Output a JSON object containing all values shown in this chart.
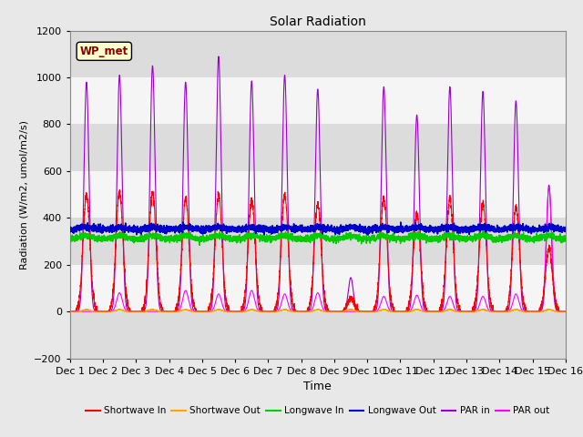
{
  "title": "Solar Radiation",
  "xlabel": "Time",
  "ylabel": "Radiation (W/m2, umol/m2/s)",
  "ylim": [
    -200,
    1200
  ],
  "xlim": [
    0,
    15
  ],
  "yticks": [
    -200,
    0,
    200,
    400,
    600,
    800,
    1000,
    1200
  ],
  "xtick_labels": [
    "Dec 1",
    "Dec 2",
    "Dec 3",
    "Dec 4",
    "Dec 5",
    "Dec 6",
    "Dec 7",
    "Dec 8",
    "Dec 9",
    "Dec 10",
    "Dec 11",
    "Dec 12",
    "Dec 13",
    "Dec 14",
    "Dec 15",
    "Dec 16"
  ],
  "station_label": "WP_met",
  "station_label_color": "#8B0000",
  "station_box_color": "#FFFFCC",
  "fig_bg": "#E8E8E8",
  "plot_bg": "#FFFFFF",
  "band_colors": [
    "#DCDCDC",
    "#F5F5F5"
  ],
  "colors": {
    "shortwave_in": "#FF0000",
    "shortwave_out": "#FFA500",
    "longwave_in": "#00CC00",
    "longwave_out": "#0000CC",
    "par_in": "#9900CC",
    "par_out": "#FF00FF"
  },
  "legend": [
    {
      "label": "Shortwave In",
      "color": "#FF0000"
    },
    {
      "label": "Shortwave Out",
      "color": "#FFA500"
    },
    {
      "label": "Longwave In",
      "color": "#00CC00"
    },
    {
      "label": "Longwave Out",
      "color": "#0000CC"
    },
    {
      "label": "PAR in",
      "color": "#9900CC"
    },
    {
      "label": "PAR out",
      "color": "#FF00FF"
    }
  ],
  "n_days": 15,
  "ppd": 288,
  "par_in_peaks": [
    980,
    1010,
    1050,
    980,
    1090,
    985,
    1010,
    950,
    145,
    960,
    840,
    960,
    940,
    900,
    540
  ],
  "par_out_peaks": [
    0,
    80,
    0,
    90,
    75,
    90,
    75,
    80,
    0,
    65,
    70,
    65,
    65,
    75,
    530
  ],
  "sw_in_peaks": [
    500,
    510,
    510,
    480,
    500,
    480,
    500,
    460,
    55,
    480,
    420,
    480,
    460,
    450,
    270
  ],
  "lw_in_base": 310,
  "lw_out_base": 350
}
